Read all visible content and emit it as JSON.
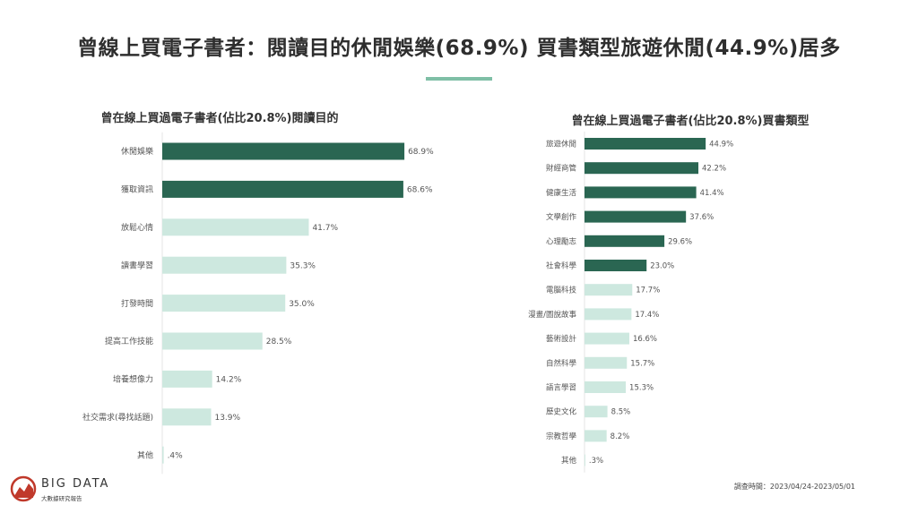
{
  "title": "曾線上買電子書者：閱讀目的休閒娛樂(68.9%) 買書類型旅遊休閒(44.9%)居多",
  "colors": {
    "dark": "#2a6652",
    "light": "#cde8df",
    "accent": "#7fbfa6",
    "logo_red": "#c0392b"
  },
  "survey_date": "調查時間：2023/04/24-2023/05/01",
  "logo": {
    "brand": "BIG DATA",
    "sub": "大數據研究報告"
  },
  "chart_data": [
    {
      "type": "bar",
      "orientation": "horizontal",
      "title": "曾在線上買過電子書者(佔比20.8%)閱讀目的",
      "categories": [
        "休閒娛樂",
        "獲取資訊",
        "放鬆心情",
        "讀書學習",
        "打發時間",
        "提高工作技能",
        "培養想像力",
        "社交需求(尋找話題)",
        "其他"
      ],
      "values": [
        68.9,
        68.6,
        41.7,
        35.3,
        35.0,
        28.5,
        14.2,
        13.9,
        0.4
      ],
      "labels": [
        "68.9%",
        "68.6%",
        "41.7%",
        "35.3%",
        "35.0%",
        "28.5%",
        "14.2%",
        "13.9%",
        ".4%"
      ],
      "highlight_count": 2,
      "xlim": [
        0,
        100
      ]
    },
    {
      "type": "bar",
      "orientation": "horizontal",
      "title": "曾在線上買過電子書者(佔比20.8%)買書類型",
      "categories": [
        "旅遊休閒",
        "財經商管",
        "健康生活",
        "文學創作",
        "心理勵志",
        "社會科學",
        "電腦科技",
        "漫畫/圖說故事",
        "藝術設計",
        "自然科學",
        "語言學習",
        "歷史文化",
        "宗教哲學",
        "其他"
      ],
      "values": [
        44.9,
        42.2,
        41.4,
        37.6,
        29.6,
        23.0,
        17.7,
        17.4,
        16.6,
        15.7,
        15.3,
        8.5,
        8.2,
        0.3
      ],
      "labels": [
        "44.9%",
        "42.2%",
        "41.4%",
        "37.6%",
        "29.6%",
        "23.0%",
        "17.7%",
        "17.4%",
        "16.6%",
        "15.7%",
        "15.3%",
        "8.5%",
        "8.2%",
        ".3%"
      ],
      "highlight_count": 6,
      "xlim": [
        0,
        100
      ]
    }
  ]
}
